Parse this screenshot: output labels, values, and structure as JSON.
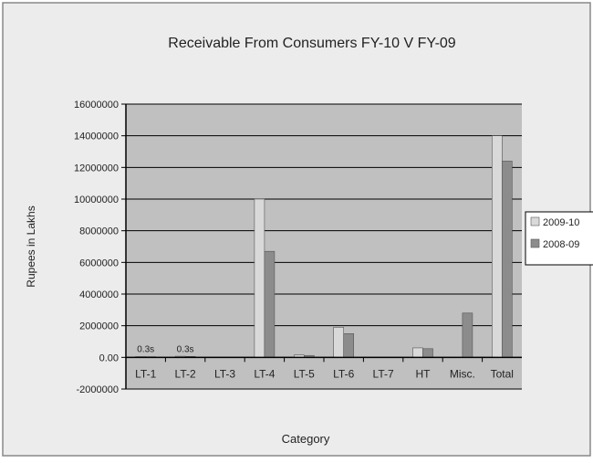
{
  "chart_data": {
    "type": "bar",
    "title": "Receivable From Consumers FY-10 V FY-09",
    "xlabel": "Category",
    "ylabel": "Rupees in Lakhs",
    "categories": [
      "LT-1",
      "LT-2",
      "LT-3",
      "LT-4",
      "LT-5",
      "LT-6",
      "LT-7",
      "HT",
      "Misc.",
      "Total"
    ],
    "series": [
      {
        "name": "2009-10",
        "values": [
          50000,
          70000,
          0,
          10000000,
          150000,
          1900000,
          0,
          600000,
          0,
          14000000
        ]
      },
      {
        "name": "2008-09",
        "values": [
          40000,
          60000,
          0,
          6700000,
          120000,
          1500000,
          0,
          550000,
          2800000,
          12400000
        ]
      }
    ],
    "data_labels": [
      "0.3s",
      "0.3s",
      "",
      "",
      "",
      "",
      "",
      "",
      "",
      ""
    ],
    "ylim": [
      -2000000,
      16000000
    ],
    "yticks": [
      -2000000,
      0,
      2000000,
      4000000,
      6000000,
      8000000,
      10000000,
      12000000,
      14000000,
      16000000
    ],
    "ytick_labels": [
      "-2000000",
      "0.00",
      "2000000",
      "4000000",
      "6000000",
      "8000000",
      "10000000",
      "12000000",
      "14000000",
      "16000000"
    ],
    "grid": true,
    "legend_position": "right",
    "colors": {
      "series": [
        "#d9d9d9",
        "#8c8c8c"
      ],
      "plot_background": "#c0c0c0",
      "chart_background": "#ececec",
      "gridline": "#000000",
      "axis": "#000000"
    }
  }
}
